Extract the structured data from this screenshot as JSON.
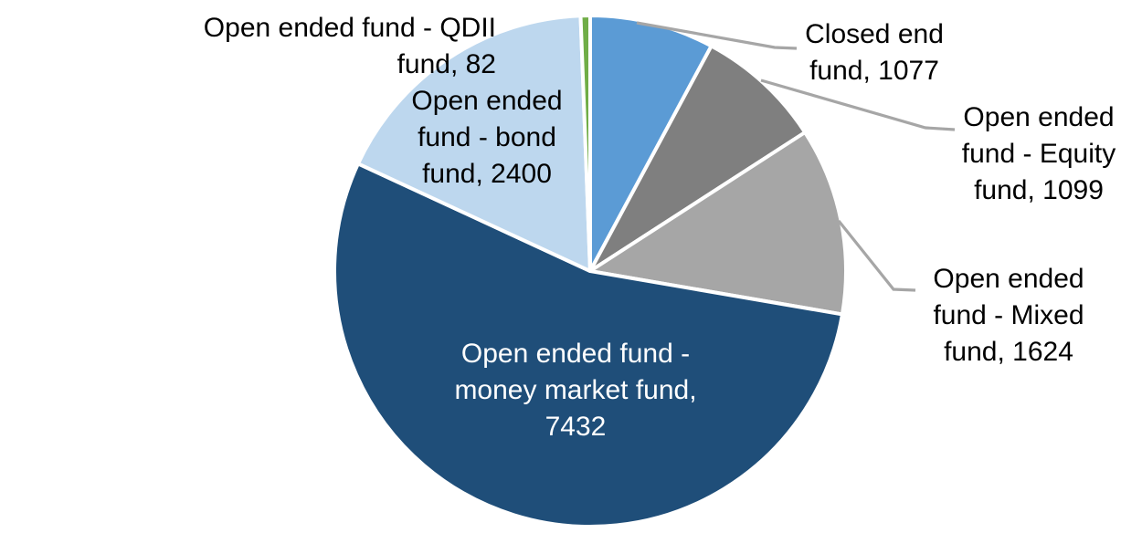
{
  "chart_data": {
    "type": "pie",
    "title": "",
    "legend": "none",
    "total": 13714,
    "background_color": "#FFFFFF",
    "slice_border_color": "#FFFFFF",
    "leader_line_color": "#A6A6A6",
    "label_format": "{name}, {value}",
    "slices": [
      {
        "label": "Closed end fund",
        "value": 1077,
        "color": "#5B9BD5",
        "label_color": "#000000",
        "display": "Closed end fund, 1077",
        "lines": [
          "Closed end",
          "fund, 1077"
        ]
      },
      {
        "label": "Open ended fund - Equity fund",
        "value": 1099,
        "color": "#7F7F7F",
        "label_color": "#000000",
        "display": "Open ended fund - Equity fund, 1099",
        "lines": [
          "Open ended",
          "fund - Equity",
          "fund, 1099"
        ]
      },
      {
        "label": "Open ended fund - Mixed fund",
        "value": 1624,
        "color": "#A6A6A6",
        "label_color": "#000000",
        "display": "Open ended fund - Mixed fund, 1624",
        "lines": [
          "Open ended",
          "fund - Mixed",
          "fund, 1624"
        ]
      },
      {
        "label": "Open ended fund - money market fund",
        "value": 7432,
        "color": "#1F4E79",
        "label_color": "#FFFFFF",
        "display": "Open ended fund - money market fund, 7432",
        "lines": [
          "Open ended fund -",
          "money market fund,",
          "7432"
        ]
      },
      {
        "label": "Open ended fund - bond fund",
        "value": 2400,
        "color": "#BDD7EE",
        "label_color": "#000000",
        "display": "Open ended fund - bond fund, 2400",
        "lines": [
          "Open ended",
          "fund - bond",
          "fund, 2400"
        ]
      },
      {
        "label": "Open ended fund - QDII fund",
        "value": 82,
        "color": "#70AD47",
        "label_color": "#000000",
        "display": "Open ended fund - QDII fund, 82",
        "lines": [
          "Open ended fund - QDII",
          "fund, 82"
        ]
      }
    ]
  }
}
